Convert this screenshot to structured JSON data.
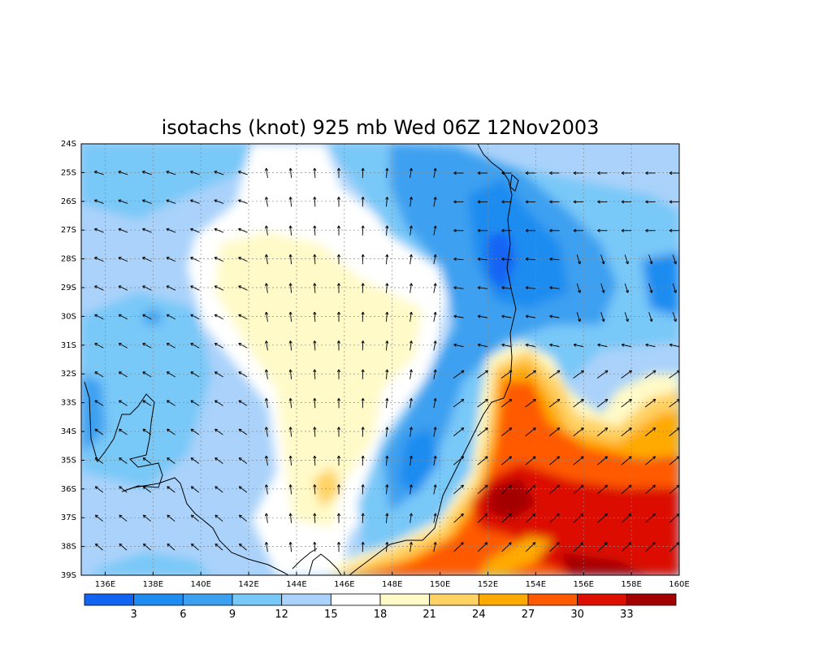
{
  "title": "isotachs (knot) 925 mb Wed 06Z 12Nov2003",
  "lon_labels": [
    "136E",
    "138E",
    "140E",
    "142E",
    "144E",
    "146E",
    "148E",
    "150E",
    "152E",
    "154E",
    "156E",
    "158E",
    "160E"
  ],
  "lat_labels": [
    "24S",
    "25S",
    "26S",
    "27S",
    "28S",
    "29S",
    "30S",
    "31S",
    "32S",
    "33S",
    "34S",
    "35S",
    "36S",
    "37S",
    "38S",
    "39S"
  ],
  "colorbar": {
    "labels": [
      "3",
      "6",
      "9",
      "12",
      "15",
      "18",
      "21",
      "24",
      "27",
      "30",
      "33"
    ],
    "colors": [
      "#1464f4",
      "#1e8cf0",
      "#3ca0f0",
      "#78c8f8",
      "#aad2fa",
      "#ffffff",
      "#fffac8",
      "#ffd264",
      "#ffaa00",
      "#ff5a00",
      "#dc0f00",
      "#a50000"
    ]
  },
  "colors": {
    "land_line": "#000000",
    "grid_line": "#888888",
    "arrow": "#000000"
  }
}
